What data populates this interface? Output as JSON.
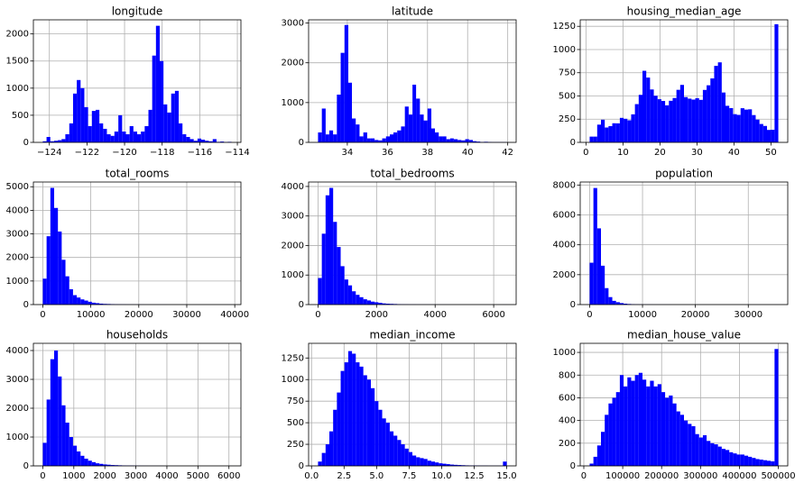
{
  "chart_data": [
    {
      "type": "histogram",
      "title": "longitude",
      "color": "#0000ff",
      "grid": true,
      "bins": [
        -124.35,
        -124.15,
        -123.95,
        -123.75,
        -123.55,
        -123.35,
        -123.15,
        -122.94,
        -122.74,
        -122.54,
        -122.34,
        -122.14,
        -121.94,
        -121.74,
        -121.54,
        -121.34,
        -121.14,
        -120.94,
        -120.74,
        -120.54,
        -120.33,
        -120.13,
        -119.93,
        -119.73,
        -119.53,
        -119.33,
        -119.13,
        -118.93,
        -118.73,
        -118.53,
        -118.33,
        -118.13,
        -117.93,
        -117.73,
        -117.52,
        -117.32,
        -117.12,
        -116.92,
        -116.72,
        -116.52,
        -116.32,
        -116.12,
        -115.92,
        -115.72,
        -115.52,
        -115.31,
        -115.11,
        -114.91,
        -114.71,
        -114.51,
        -114.31
      ],
      "counts": [
        20,
        100,
        20,
        30,
        40,
        60,
        150,
        350,
        900,
        1150,
        1000,
        650,
        300,
        580,
        600,
        350,
        250,
        150,
        120,
        200,
        500,
        200,
        150,
        300,
        200,
        150,
        200,
        300,
        600,
        1600,
        2150,
        1500,
        700,
        550,
        900,
        950,
        350,
        150,
        100,
        60,
        30,
        70,
        50,
        30,
        20,
        60,
        10,
        15,
        5,
        10
      ],
      "xlim": [
        -124.85,
        -113.81
      ],
      "xticks": [
        {
          "value": -124,
          "label": "−124"
        },
        {
          "value": -122,
          "label": "−122"
        },
        {
          "value": -120,
          "label": "−120"
        },
        {
          "value": -118,
          "label": "−118"
        },
        {
          "value": -116,
          "label": "−116"
        },
        {
          "value": -114,
          "label": "−114"
        }
      ],
      "ylim": [
        0,
        2260
      ],
      "yticks": [
        0,
        500,
        1000,
        1500,
        2000
      ]
    },
    {
      "type": "histogram",
      "title": "latitude",
      "color": "#0000ff",
      "grid": true,
      "bins": [
        32.54,
        32.73,
        32.92,
        33.1,
        33.29,
        33.48,
        33.67,
        33.86,
        34.05,
        34.23,
        34.42,
        34.61,
        34.8,
        34.99,
        35.17,
        35.36,
        35.55,
        35.74,
        35.93,
        36.12,
        36.3,
        36.49,
        36.68,
        36.87,
        37.06,
        37.25,
        37.43,
        37.62,
        37.81,
        38.0,
        38.19,
        38.37,
        38.56,
        38.75,
        38.94,
        39.13,
        39.31,
        39.5,
        39.69,
        39.88,
        40.07,
        40.26,
        40.44,
        40.63,
        40.82,
        41.01,
        41.2,
        41.38,
        41.57,
        41.76,
        41.95
      ],
      "counts": [
        250,
        850,
        200,
        300,
        200,
        1200,
        2250,
        2950,
        1500,
        600,
        450,
        150,
        250,
        100,
        100,
        60,
        50,
        100,
        150,
        200,
        250,
        300,
        400,
        900,
        700,
        1450,
        1100,
        700,
        550,
        850,
        350,
        250,
        150,
        150,
        80,
        100,
        80,
        60,
        50,
        80,
        60,
        30,
        20,
        10,
        15,
        10,
        5,
        5,
        5,
        5
      ],
      "xlim": [
        32.07,
        42.42
      ],
      "xticks": [
        34,
        36,
        38,
        40,
        42
      ],
      "ylim": [
        0,
        3080
      ],
      "yticks": [
        0,
        1000,
        2000,
        3000
      ]
    },
    {
      "type": "histogram",
      "title": "housing_median_age",
      "color": "#0000ff",
      "grid": true,
      "bins": [
        1,
        2.02,
        3.04,
        4.06,
        5.08,
        6.1,
        7.12,
        8.14,
        9.16,
        10.18,
        11.2,
        12.22,
        13.24,
        14.26,
        15.28,
        16.3,
        17.32,
        18.34,
        19.36,
        20.38,
        21.4,
        22.42,
        23.44,
        24.46,
        25.48,
        26.5,
        27.52,
        28.54,
        29.56,
        30.58,
        31.6,
        32.62,
        33.64,
        34.66,
        35.68,
        36.7,
        37.72,
        38.74,
        39.76,
        40.78,
        41.8,
        42.82,
        43.84,
        44.86,
        45.88,
        46.9,
        47.92,
        48.94,
        49.96,
        50.98,
        52
      ],
      "counts": [
        62,
        62,
        191,
        244,
        160,
        175,
        206,
        205,
        264,
        254,
        238,
        302,
        412,
        512,
        771,
        698,
        570,
        502,
        465,
        446,
        399,
        448,
        478,
        566,
        619,
        488,
        471,
        461,
        476,
        458,
        565,
        615,
        689,
        824,
        862,
        537,
        394,
        369,
        304,
        296,
        368,
        353,
        356,
        294,
        245,
        198,
        177,
        134,
        136,
        1273
      ],
      "xlim": [
        -1.55,
        54.55
      ],
      "xticks": [
        0,
        10,
        20,
        30,
        40,
        50
      ],
      "ylim": [
        0,
        1320
      ],
      "yticks": [
        0,
        250,
        500,
        750,
        1000,
        1250
      ]
    },
    {
      "type": "histogram",
      "title": "total_rooms",
      "color": "#0000ff",
      "grid": true,
      "bins": [
        2,
        788,
        1575,
        2361,
        3147,
        3934,
        4720,
        5507,
        6293,
        7079,
        7866,
        8652,
        9438,
        10225,
        11011,
        11797,
        12584,
        13370,
        14156,
        14943,
        15729,
        16515,
        17302,
        18088,
        18874,
        19661,
        20447,
        21233,
        22020,
        22806,
        23592,
        24379,
        25165,
        25952,
        26738,
        27524,
        28311,
        29097,
        29883,
        30670,
        31456,
        32242,
        33029,
        33815,
        34601,
        35388,
        36174,
        36960,
        37747,
        38533,
        39320
      ],
      "counts": [
        1100,
        2900,
        4950,
        4100,
        3100,
        1900,
        1200,
        650,
        400,
        300,
        220,
        170,
        120,
        80,
        60,
        40,
        30,
        25,
        20,
        12,
        10,
        8,
        6,
        5,
        4,
        4,
        3,
        2,
        2,
        1,
        1,
        1,
        1,
        0,
        0,
        0,
        0,
        1,
        0,
        0,
        0,
        0,
        0,
        0,
        0,
        0,
        0,
        0,
        0,
        1
      ],
      "xlim": [
        -1964,
        41286
      ],
      "xticks": [
        0,
        10000,
        20000,
        30000,
        40000
      ],
      "ylim": [
        0,
        5200
      ],
      "yticks": [
        0,
        1000,
        2000,
        3000,
        4000,
        5000
      ]
    },
    {
      "type": "histogram",
      "title": "total_bedrooms",
      "color": "#0000ff",
      "grid": true,
      "bins": [
        1,
        130,
        259,
        388,
        517,
        645,
        774,
        903,
        1032,
        1161,
        1290,
        1419,
        1548,
        1676,
        1805,
        1934,
        2063,
        2192,
        2321,
        2450,
        2579,
        2707,
        2836,
        2965,
        3094,
        3223,
        3352,
        3481,
        3610,
        3739,
        3867,
        3996,
        4125,
        4254,
        4383,
        4512,
        4641,
        4770,
        4898,
        5027,
        5156,
        5285,
        5414,
        5543,
        5672,
        5801,
        5929,
        6058,
        6187,
        6316,
        6445
      ],
      "counts": [
        900,
        2400,
        3700,
        3950,
        2800,
        1950,
        1300,
        850,
        650,
        450,
        330,
        250,
        180,
        140,
        100,
        80,
        60,
        40,
        30,
        25,
        20,
        15,
        10,
        8,
        6,
        5,
        4,
        3,
        3,
        2,
        2,
        1,
        1,
        1,
        1,
        0,
        0,
        0,
        0,
        0,
        0,
        0,
        0,
        0,
        0,
        0,
        0,
        0,
        0,
        1
      ],
      "xlim": [
        -321,
        6767
      ],
      "xticks": [
        0,
        2000,
        4000,
        6000
      ],
      "ylim": [
        0,
        4150
      ],
      "yticks": [
        0,
        1000,
        2000,
        3000,
        4000
      ]
    },
    {
      "type": "histogram",
      "title": "population",
      "color": "#0000ff",
      "grid": true,
      "bins": [
        3,
        717,
        1430,
        2144,
        2857,
        3571,
        4285,
        4998,
        5712,
        6425,
        7139,
        7852,
        8566,
        9280,
        9993,
        10707,
        11420,
        12134,
        12847,
        13561,
        14275,
        14988,
        15702,
        16415,
        17129,
        17842,
        18556,
        19270,
        19983,
        20697,
        21410,
        22124,
        22837,
        23551,
        24265,
        24978,
        25692,
        26405,
        27119,
        27832,
        28546,
        29259,
        29973,
        30687,
        31400,
        32114,
        32827,
        33541,
        34254,
        34968,
        35682
      ],
      "counts": [
        2800,
        7800,
        5100,
        2600,
        1100,
        500,
        250,
        160,
        100,
        60,
        40,
        25,
        15,
        10,
        8,
        6,
        4,
        3,
        2,
        2,
        1,
        1,
        0,
        0,
        0,
        0,
        0,
        0,
        1,
        0,
        0,
        0,
        0,
        0,
        0,
        0,
        0,
        0,
        0,
        0,
        0,
        0,
        0,
        0,
        0,
        0,
        0,
        0,
        0,
        1
      ],
      "xlim": [
        -1781,
        37466
      ],
      "xticks": [
        0,
        10000,
        20000,
        30000
      ],
      "ylim": [
        0,
        8200
      ],
      "yticks": [
        0,
        2000,
        4000,
        6000,
        8000
      ]
    },
    {
      "type": "histogram",
      "title": "households",
      "color": "#0000ff",
      "grid": true,
      "bins": [
        1,
        123,
        244,
        366,
        487,
        609,
        731,
        852,
        974,
        1096,
        1217,
        1339,
        1460,
        1582,
        1704,
        1825,
        1947,
        2069,
        2190,
        2312,
        2433,
        2555,
        2677,
        2798,
        2920,
        3042,
        3163,
        3285,
        3406,
        3528,
        3650,
        3771,
        3893,
        4014,
        4136,
        4258,
        4379,
        4501,
        4623,
        4744,
        4866,
        4987,
        5109,
        5231,
        5352,
        5474,
        5596,
        5717,
        5839,
        5960,
        6082
      ],
      "counts": [
        800,
        2300,
        3700,
        4000,
        3100,
        2100,
        1500,
        1000,
        700,
        500,
        350,
        250,
        180,
        130,
        90,
        70,
        50,
        40,
        30,
        25,
        20,
        15,
        12,
        10,
        8,
        6,
        5,
        4,
        3,
        2,
        2,
        2,
        1,
        1,
        1,
        1,
        0,
        0,
        0,
        0,
        0,
        0,
        0,
        0,
        0,
        0,
        0,
        0,
        0,
        1
      ],
      "xlim": [
        -303,
        6386
      ],
      "xticks": [
        0,
        1000,
        2000,
        3000,
        4000,
        5000,
        6000
      ],
      "ylim": [
        0,
        4250
      ],
      "yticks": [
        0,
        1000,
        2000,
        3000,
        4000
      ]
    },
    {
      "type": "histogram",
      "title": "median_income",
      "color": "#0000ff",
      "grid": true,
      "bins": [
        0.5,
        0.79,
        1.08,
        1.37,
        1.66,
        1.95,
        2.24,
        2.53,
        2.82,
        3.11,
        3.4,
        3.69,
        3.98,
        4.27,
        4.56,
        4.85,
        5.14,
        5.43,
        5.72,
        6.01,
        6.3,
        6.59,
        6.88,
        7.17,
        7.46,
        7.75,
        8.04,
        8.33,
        8.62,
        8.91,
        9.2,
        9.49,
        9.78,
        10.07,
        10.36,
        10.65,
        10.94,
        11.23,
        11.52,
        11.81,
        12.1,
        12.39,
        12.68,
        12.97,
        13.26,
        13.55,
        13.84,
        14.13,
        14.42,
        14.71,
        15.0
      ],
      "counts": [
        50,
        150,
        250,
        400,
        650,
        850,
        1100,
        1200,
        1330,
        1300,
        1200,
        1150,
        1050,
        1000,
        900,
        750,
        650,
        550,
        500,
        400,
        350,
        300,
        250,
        200,
        160,
        120,
        100,
        90,
        80,
        60,
        50,
        40,
        30,
        25,
        20,
        15,
        12,
        10,
        8,
        6,
        5,
        5,
        4,
        3,
        3,
        2,
        2,
        2,
        2,
        50
      ],
      "xlim": [
        -0.225,
        15.725
      ],
      "xticks": [
        {
          "value": 0,
          "label": "0.0"
        },
        2.5,
        {
          "value": 5,
          "label": "5.0"
        },
        7.5,
        {
          "value": 10,
          "label": "10.0"
        },
        12.5,
        {
          "value": 15,
          "label": "15.0"
        }
      ],
      "ylim": [
        0,
        1420
      ],
      "yticks": [
        0,
        250,
        500,
        750,
        1000,
        1250
      ]
    },
    {
      "type": "histogram",
      "title": "median_house_value",
      "color": "#0000ff",
      "grid": true,
      "bins": [
        14999,
        24699,
        34399,
        44099,
        53799,
        63499,
        73199,
        82899,
        92599,
        102299,
        111999,
        121699,
        131399,
        141099,
        150799,
        160499,
        170199,
        179899,
        189599,
        199299,
        208999,
        218699,
        228399,
        238099,
        247799,
        257499,
        267199,
        276899,
        286599,
        296299,
        305999,
        315699,
        325399,
        335099,
        344799,
        354499,
        364199,
        373899,
        383599,
        393299,
        402999,
        412699,
        422399,
        432099,
        441799,
        451499,
        461199,
        470899,
        480599,
        490299,
        500001
      ],
      "counts": [
        20,
        80,
        180,
        300,
        450,
        550,
        600,
        650,
        800,
        700,
        780,
        750,
        800,
        820,
        760,
        700,
        750,
        700,
        720,
        650,
        600,
        620,
        550,
        480,
        450,
        400,
        370,
        350,
        280,
        250,
        270,
        220,
        200,
        190,
        170,
        150,
        140,
        120,
        110,
        100,
        100,
        90,
        80,
        70,
        60,
        55,
        50,
        45,
        40,
        1030
      ],
      "xlim": [
        -9251,
        524251
      ],
      "xticks": [
        0,
        100000,
        200000,
        300000,
        400000,
        500000
      ],
      "ylim": [
        0,
        1080
      ],
      "yticks": [
        0,
        200,
        400,
        600,
        800,
        1000
      ]
    }
  ]
}
